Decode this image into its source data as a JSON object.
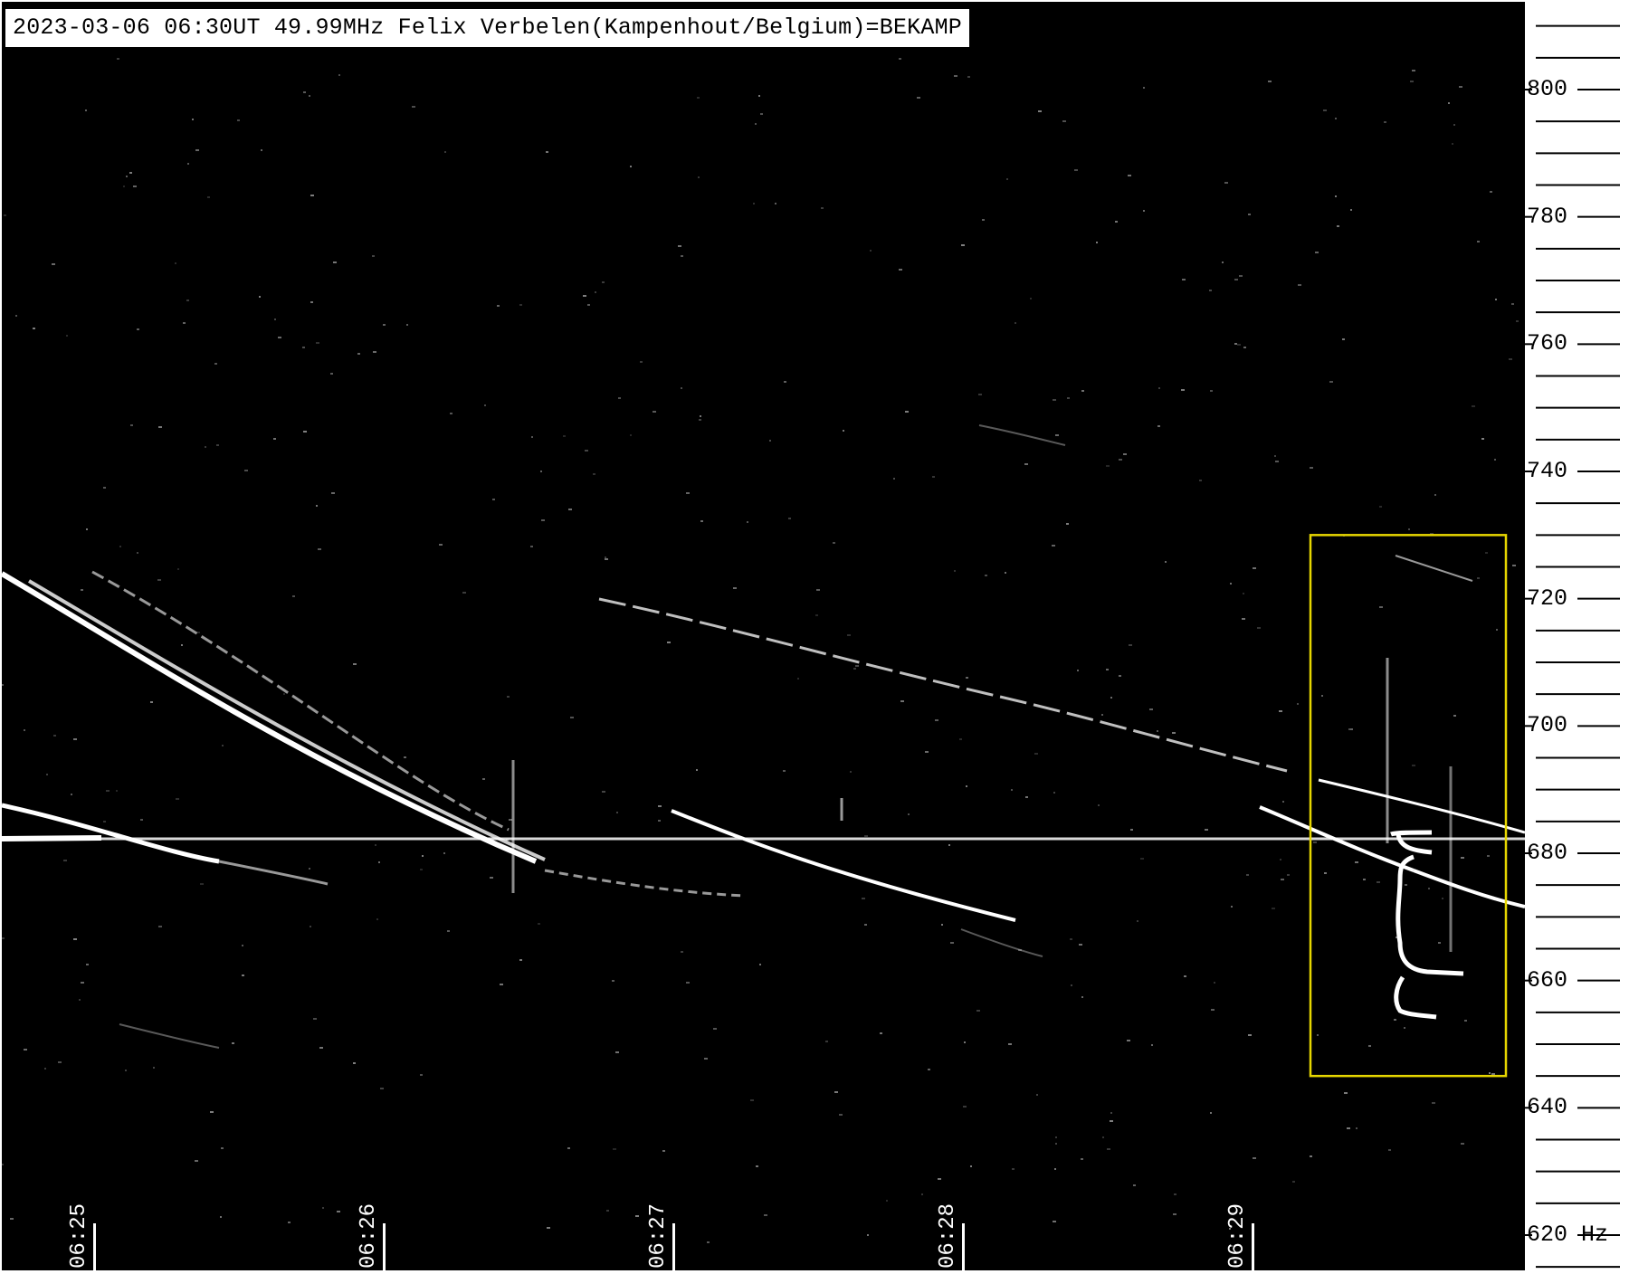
{
  "header": {
    "text": "2023-03-06 06:30UT 49.99MHz Felix Verbelen(Kampenhout/Belgium)=BEKAMP"
  },
  "frequency_axis": {
    "labels": [
      {
        "value": 800,
        "text": "800"
      },
      {
        "value": 780,
        "text": "780"
      },
      {
        "value": 760,
        "text": "760"
      },
      {
        "value": 740,
        "text": "740"
      },
      {
        "value": 720,
        "text": "720"
      },
      {
        "value": 700,
        "text": "700"
      },
      {
        "value": 680,
        "text": "680"
      },
      {
        "value": 660,
        "text": "660"
      },
      {
        "value": 640,
        "text": "640"
      },
      {
        "value": 620,
        "text": "620 Hz"
      }
    ]
  },
  "time_axis": {
    "labels": [
      {
        "minute": 25,
        "text": "06:25"
      },
      {
        "minute": 26,
        "text": "06:26"
      },
      {
        "minute": 27,
        "text": "06:27"
      },
      {
        "minute": 28,
        "text": "06:28"
      },
      {
        "minute": 29,
        "text": "06:29"
      }
    ]
  },
  "highlight": {
    "color": "#e6d600",
    "freq_range": [
      645,
      730
    ]
  },
  "colors": {
    "background": "#000000",
    "signal": "#ffffff"
  }
}
